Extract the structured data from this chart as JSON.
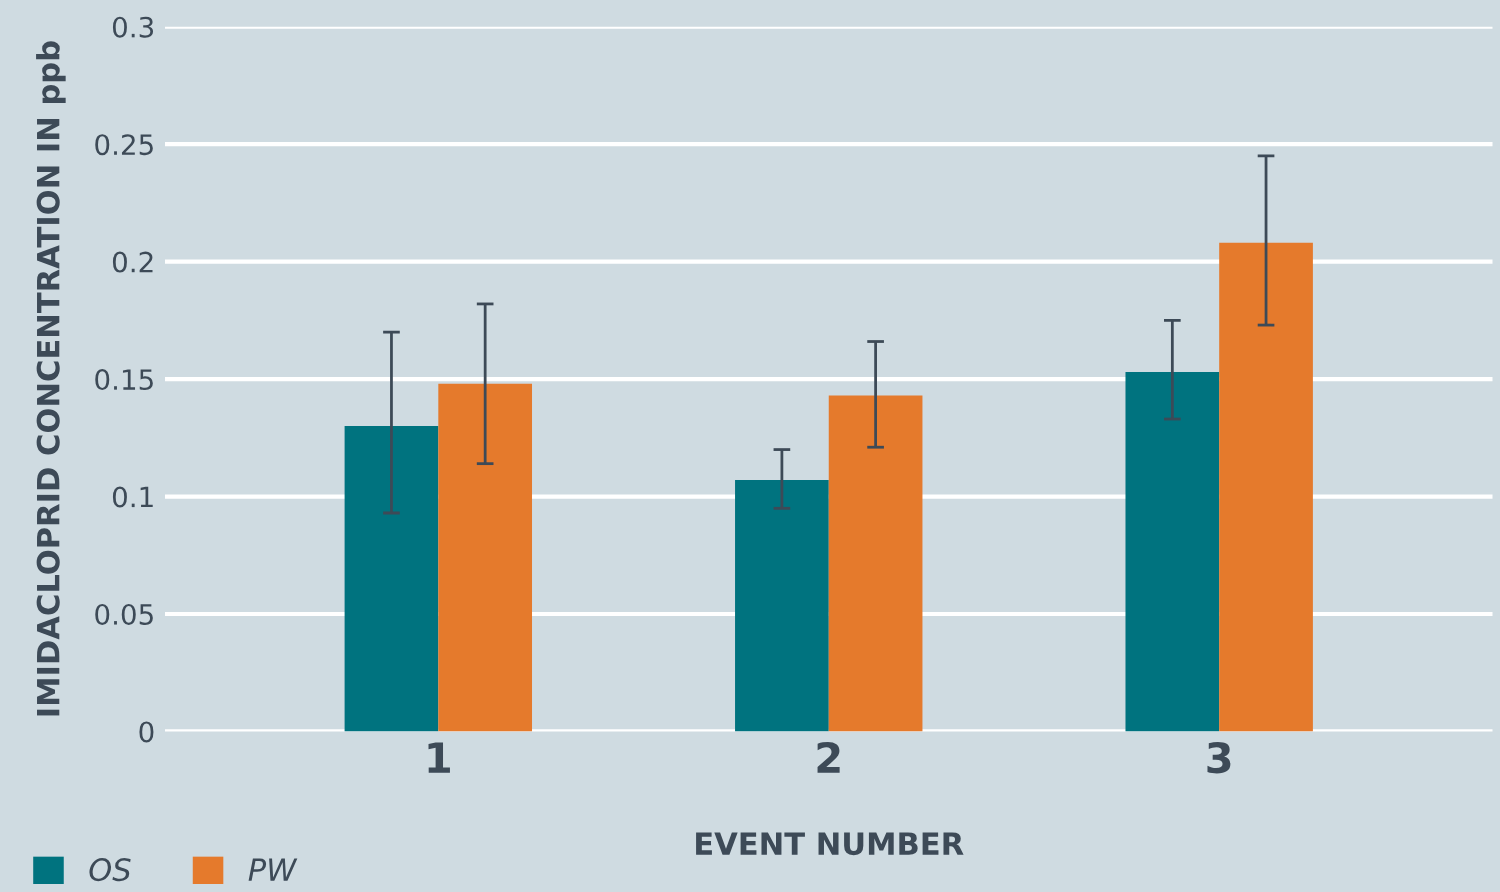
{
  "chart_data": {
    "type": "bar",
    "xlabel": "EVENT NUMBER",
    "ylabel": "IMIDACLOPRID CONCENTRATION IN ppb",
    "categories": [
      "1",
      "2",
      "3"
    ],
    "series": [
      {
        "name": "OS",
        "color": "#00737f",
        "values": [
          0.13,
          0.107,
          0.153
        ],
        "errors": [
          [
            0.093,
            0.17
          ],
          [
            0.095,
            0.12
          ],
          [
            0.133,
            0.175
          ]
        ]
      },
      {
        "name": "PW",
        "color": "#e57a2c",
        "values": [
          0.148,
          0.143,
          0.208
        ],
        "errors": [
          [
            0.114,
            0.182
          ],
          [
            0.121,
            0.166
          ],
          [
            0.173,
            0.245
          ]
        ]
      }
    ],
    "ylim": [
      0,
      0.3
    ],
    "yticks": [
      0,
      0.05,
      0.1,
      0.15,
      0.2,
      0.25,
      0.3
    ],
    "grid": "y",
    "legend": "bottom left"
  }
}
